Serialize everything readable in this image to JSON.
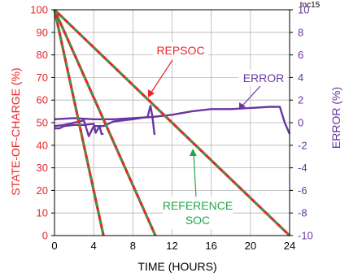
{
  "chart_data": {
    "type": "line",
    "tag": "toc15",
    "xlabel": "TIME (HOURS)",
    "ylabel_left": "STATE-OF-CHARGE (%)",
    "ylabel_right": "ERROR (%)",
    "xlim": [
      0,
      24
    ],
    "ylim_left": [
      0,
      100
    ],
    "ylim_right": [
      -10,
      10
    ],
    "x_ticks": [
      "0",
      "4",
      "8",
      "12",
      "16",
      "20",
      "24"
    ],
    "y_left_ticks": [
      "0",
      "10",
      "20",
      "30",
      "40",
      "50",
      "60",
      "70",
      "80",
      "90",
      "100"
    ],
    "y_right_ticks": [
      "-10",
      "-8",
      "-6",
      "-4",
      "-2",
      "0",
      "2",
      "4",
      "6",
      "8",
      "10"
    ],
    "grid": true,
    "colors": {
      "repsoc": "#e8262a",
      "reference": "#25a54a",
      "error": "#6b36a0",
      "left_axis": "#e8262a",
      "right_axis": "#6b36a0"
    },
    "series": [
      {
        "name": "REPSOC",
        "axis": "left",
        "x": [
          0,
          24
        ],
        "y": [
          100,
          0
        ]
      },
      {
        "name": "REPSOC",
        "axis": "left",
        "x": [
          0,
          10.3
        ],
        "y": [
          100,
          0
        ]
      },
      {
        "name": "REPSOC",
        "axis": "left",
        "x": [
          0,
          5
        ],
        "y": [
          100,
          0
        ]
      },
      {
        "name": "REFERENCE SOC",
        "axis": "left",
        "x": [
          0,
          24
        ],
        "y": [
          100,
          0
        ]
      },
      {
        "name": "REFERENCE SOC",
        "axis": "left",
        "x": [
          0,
          10.3
        ],
        "y": [
          100,
          0
        ]
      },
      {
        "name": "REFERENCE SOC",
        "axis": "left",
        "x": [
          0,
          5
        ],
        "y": [
          100,
          0
        ]
      },
      {
        "name": "ERROR",
        "axis": "right",
        "x": [
          0,
          2,
          4,
          6,
          8,
          10,
          12,
          14,
          16,
          18,
          20,
          22,
          23,
          23.5,
          24
        ],
        "y": [
          0.3,
          0.4,
          0.3,
          0.3,
          0.4,
          0.5,
          0.7,
          1.0,
          1.2,
          1.2,
          1.3,
          1.4,
          1.4,
          0,
          -1
        ]
      },
      {
        "name": "ERROR",
        "axis": "right",
        "x": [
          0,
          1,
          2,
          3,
          3.5,
          4,
          5,
          6,
          8,
          9.5,
          9.8,
          10,
          10.2,
          10.3
        ],
        "y": [
          -0.3,
          -0.2,
          0,
          0.2,
          -1.2,
          -0.3,
          -0.3,
          0.1,
          0.3,
          0.5,
          1.5,
          0.5,
          -1,
          -1
        ]
      },
      {
        "name": "ERROR",
        "axis": "right",
        "x": [
          0,
          0.5,
          1,
          2,
          3,
          4,
          4.2,
          4.6,
          4.8,
          5
        ],
        "y": [
          -0.5,
          -0.5,
          -0.3,
          -0.2,
          -0.2,
          -0.1,
          -0.9,
          -0.3,
          -1,
          -1
        ]
      }
    ],
    "annotations": [
      {
        "text": "REPSOC",
        "color": "#e8262a"
      },
      {
        "text": "ERROR",
        "color": "#6b36a0"
      },
      {
        "text": "REFERENCE",
        "color": "#25a54a"
      },
      {
        "text": "SOC",
        "color": "#25a54a"
      }
    ]
  }
}
